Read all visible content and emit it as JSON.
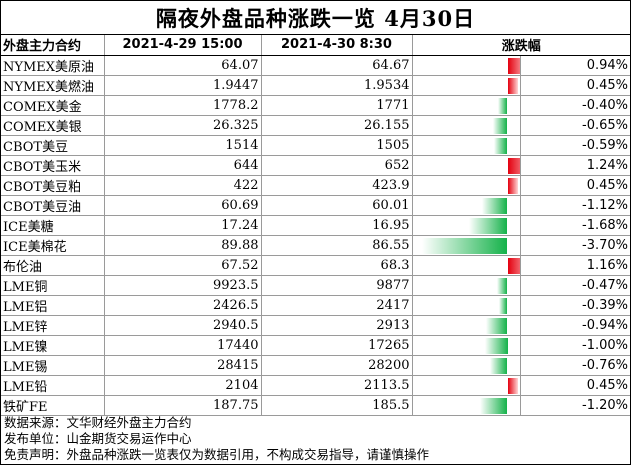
{
  "title": "隔夜外盘品种涨跌一览 4月30日",
  "header": {
    "contract": "外盘主力合约",
    "date1": "2021-4-29 15:00",
    "date2": "2021-4-30 8:30",
    "change": "涨跌幅"
  },
  "colors": {
    "up": "#e4000f",
    "down": "#15b24a"
  },
  "rows": [
    {
      "name": "NYMEX美原油",
      "prev": "64.07",
      "curr": "64.67",
      "pct": "0.94%",
      "value": 0.94
    },
    {
      "name": "NYMEX美燃油",
      "prev": "1.9447",
      "curr": "1.9534",
      "pct": "0.45%",
      "value": 0.45
    },
    {
      "name": "COMEX美金",
      "prev": "1778.2",
      "curr": "1771",
      "pct": "-0.40%",
      "value": -0.4
    },
    {
      "name": "COMEX美银",
      "prev": "26.325",
      "curr": "26.155",
      "pct": "-0.65%",
      "value": -0.65
    },
    {
      "name": "CBOT美豆",
      "prev": "1514",
      "curr": "1505",
      "pct": "-0.59%",
      "value": -0.59
    },
    {
      "name": "CBOT美玉米",
      "prev": "644",
      "curr": "652",
      "pct": "1.24%",
      "value": 1.24
    },
    {
      "name": "CBOT美豆粕",
      "prev": "422",
      "curr": "423.9",
      "pct": "0.45%",
      "value": 0.45
    },
    {
      "name": "CBOT美豆油",
      "prev": "60.69",
      "curr": "60.01",
      "pct": "-1.12%",
      "value": -1.12
    },
    {
      "name": "ICE美糖",
      "prev": "17.24",
      "curr": "16.95",
      "pct": "-1.68%",
      "value": -1.68
    },
    {
      "name": "ICE美棉花",
      "prev": "89.88",
      "curr": "86.55",
      "pct": "-3.70%",
      "value": -3.7
    },
    {
      "name": "布伦油",
      "prev": "67.52",
      "curr": "68.3",
      "pct": "1.16%",
      "value": 1.16
    },
    {
      "name": "LME铜",
      "prev": "9923.5",
      "curr": "9877",
      "pct": "-0.47%",
      "value": -0.47
    },
    {
      "name": "LME铝",
      "prev": "2426.5",
      "curr": "2417",
      "pct": "-0.39%",
      "value": -0.39
    },
    {
      "name": "LME锌",
      "prev": "2940.5",
      "curr": "2913",
      "pct": "-0.94%",
      "value": -0.94
    },
    {
      "name": "LME镍",
      "prev": "17440",
      "curr": "17265",
      "pct": "-1.00%",
      "value": -1.0
    },
    {
      "name": "LME锡",
      "prev": "28415",
      "curr": "28200",
      "pct": "-0.76%",
      "value": -0.76
    },
    {
      "name": "LME铅",
      "prev": "2104",
      "curr": "2113.5",
      "pct": "0.45%",
      "value": 0.45
    },
    {
      "name": "铁矿FE",
      "prev": "187.75",
      "curr": "185.5",
      "pct": "-1.20%",
      "value": -1.2
    }
  ],
  "footer": {
    "source": "数据来源：文华财经外盘主力合约",
    "publisher": "发布单位：山金期货交易运作中心",
    "disclaimer": "免责声明：外盘品种涨跌一览表仅为数据引用，不构成交易指导，请谨慎操作"
  }
}
